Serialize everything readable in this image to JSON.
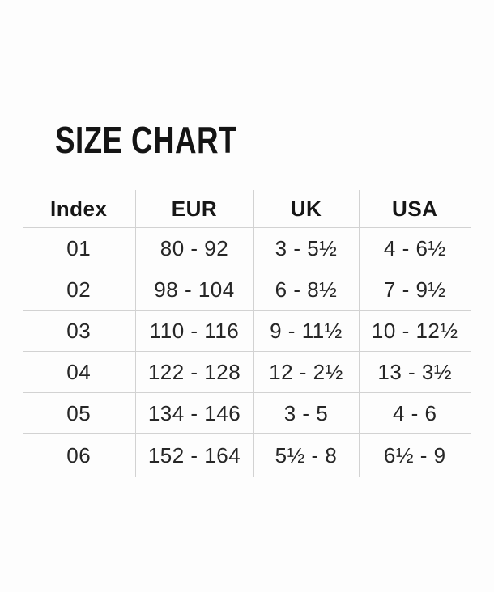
{
  "page": {
    "title": "SIZE CHART",
    "background": "#fdfdfd"
  },
  "colors": {
    "title_text": "#141414",
    "table_text": "#262626",
    "grid_line": "#d2d2d2"
  },
  "chart_data": {
    "type": "table",
    "title": "SIZE CHART",
    "columns": [
      "Index",
      "EUR",
      "UK",
      "USA"
    ],
    "rows": [
      [
        "01",
        "80 - 92",
        "3 - 5½",
        "4 - 6½"
      ],
      [
        "02",
        "98 - 104",
        "6 - 8½",
        "7 - 9½"
      ],
      [
        "03",
        "110 - 116",
        "9 - 11½",
        "10 - 12½"
      ],
      [
        "04",
        "122 - 128",
        "12 - 2½",
        "13 - 3½"
      ],
      [
        "05",
        "134 - 146",
        "3 - 5",
        "4 - 6"
      ],
      [
        "06",
        "152 - 164",
        "5½ - 8",
        "6½ - 9"
      ]
    ]
  }
}
